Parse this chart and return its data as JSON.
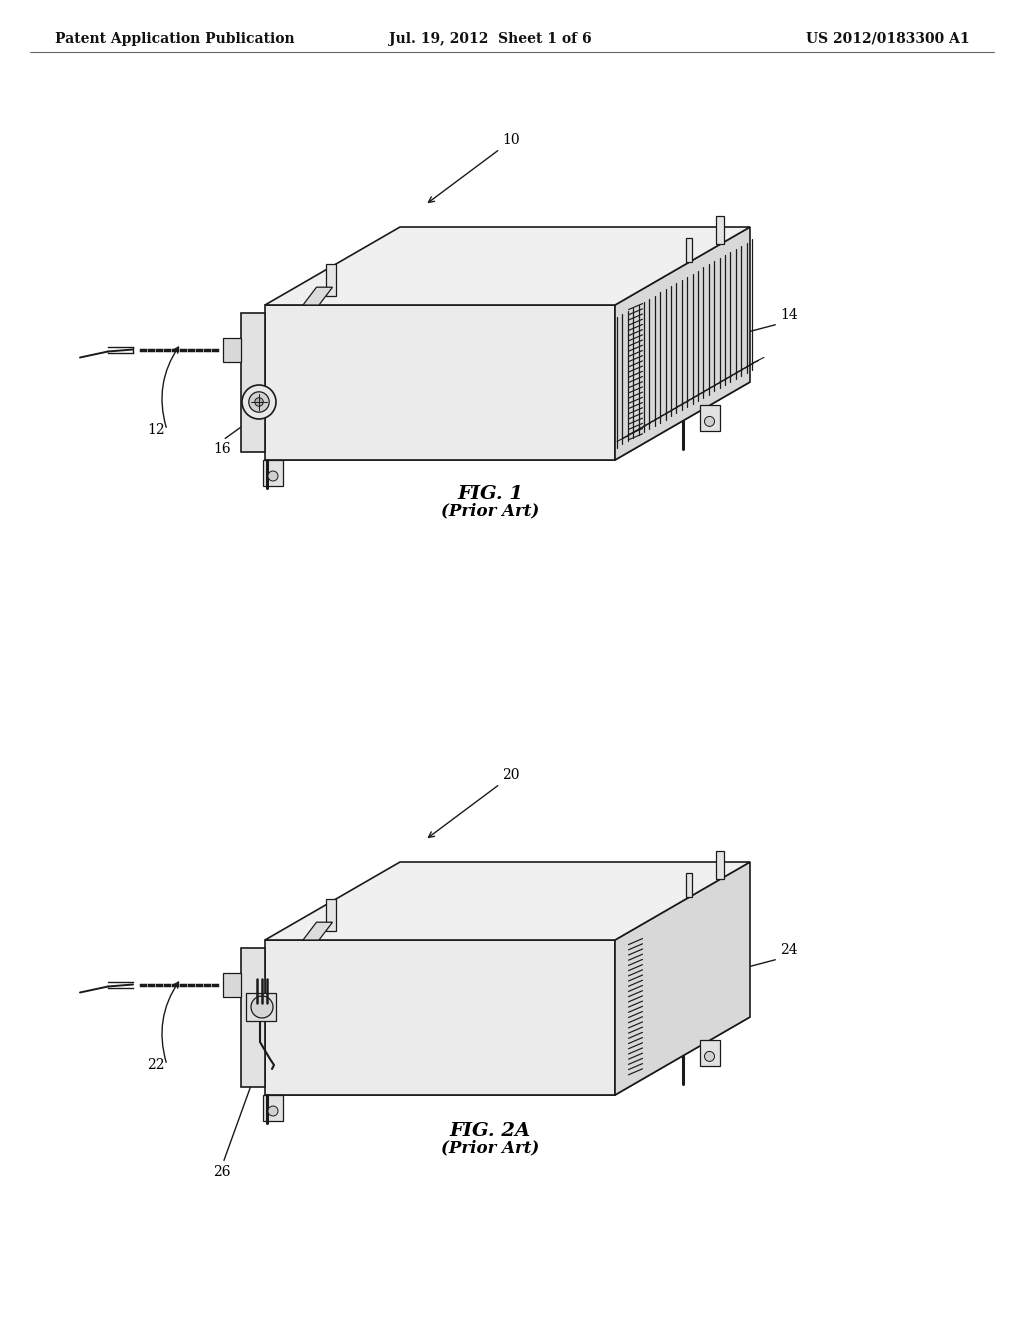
{
  "background_color": "#ffffff",
  "line_color": "#1a1a1a",
  "line_width": 1.2,
  "header_left": "Patent Application Publication",
  "header_center": "Jul. 19, 2012  Sheet 1 of 6",
  "header_right": "US 2012/0183300 A1",
  "fig1_label": "FIG. 1",
  "fig1_sublabel": "(Prior Art)",
  "fig2_label": "FIG. 2A",
  "fig2_sublabel": "(Prior Art)",
  "top_color": "#f0f0f0",
  "front_color": "#ebebeb",
  "right_color": "#d8d8d8",
  "bot_color": "#d0d0d0"
}
